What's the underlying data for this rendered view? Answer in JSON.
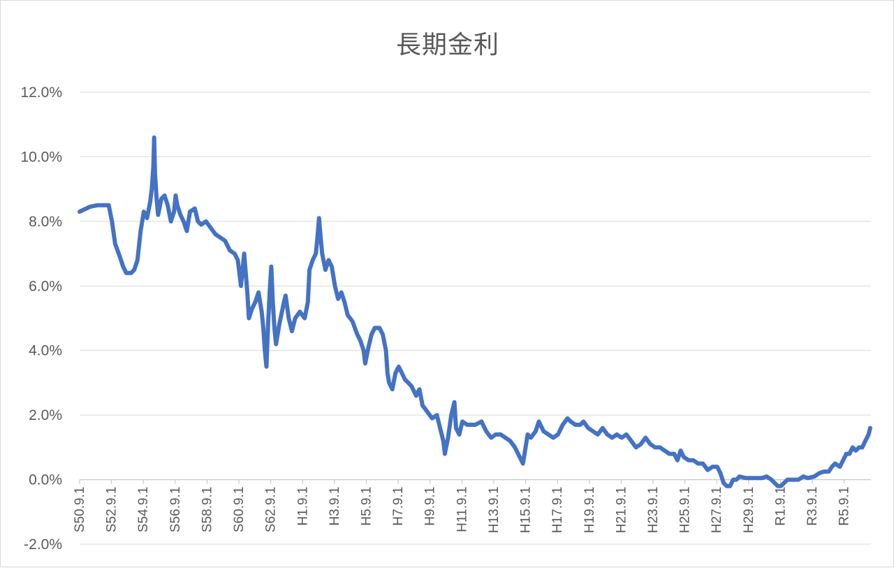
{
  "chart_data": {
    "type": "line",
    "title": "長期金利",
    "xlabel": "",
    "ylabel": "",
    "ylim": [
      -0.02,
      0.12
    ],
    "y_ticks": [
      -0.02,
      0.0,
      0.02,
      0.04,
      0.06,
      0.08,
      0.1,
      0.12
    ],
    "y_tick_labels": [
      "-2.0%",
      "0.0%",
      "2.0%",
      "4.0%",
      "6.0%",
      "8.0%",
      "10.0%",
      "12.0%"
    ],
    "grid": true,
    "legend": "none",
    "line_color": "#4472c4",
    "x_tick_labels": [
      "S50.9.1",
      "S52.9.1",
      "S54.9.1",
      "S56.9.1",
      "S58.9.1",
      "S60.9.1",
      "S62.9.1",
      "H1.9.1",
      "H3.9.1",
      "H5.9.1",
      "H7.9.1",
      "H9.9.1",
      "H11.9.1",
      "H13.9.1",
      "H15.9.1",
      "H17.9.1",
      "H19.9.1",
      "H21.9.1",
      "H23.9.1",
      "H25.9.1",
      "H27.9.1",
      "H29.9.1",
      "R1.9.1",
      "R3.9.1",
      "R5.9.1"
    ],
    "series": [
      {
        "values": [
          [
            1975.67,
            0.083
          ],
          [
            1976.3,
            0.0845
          ],
          [
            1976.8,
            0.085
          ],
          [
            1977.3,
            0.085
          ],
          [
            1977.5,
            0.085
          ],
          [
            1977.7,
            0.08
          ],
          [
            1977.9,
            0.073
          ],
          [
            1978.2,
            0.069
          ],
          [
            1978.4,
            0.066
          ],
          [
            1978.6,
            0.064
          ],
          [
            1978.9,
            0.064
          ],
          [
            1979.1,
            0.065
          ],
          [
            1979.3,
            0.068
          ],
          [
            1979.5,
            0.077
          ],
          [
            1979.7,
            0.083
          ],
          [
            1979.9,
            0.081
          ],
          [
            1980.1,
            0.086
          ],
          [
            1980.2,
            0.09
          ],
          [
            1980.3,
            0.097
          ],
          [
            1980.35,
            0.106
          ],
          [
            1980.4,
            0.095
          ],
          [
            1980.5,
            0.087
          ],
          [
            1980.6,
            0.082
          ],
          [
            1980.8,
            0.087
          ],
          [
            1981.0,
            0.088
          ],
          [
            1981.2,
            0.085
          ],
          [
            1981.4,
            0.08
          ],
          [
            1981.6,
            0.083
          ],
          [
            1981.7,
            0.088
          ],
          [
            1981.8,
            0.085
          ],
          [
            1982.0,
            0.082
          ],
          [
            1982.2,
            0.08
          ],
          [
            1982.4,
            0.077
          ],
          [
            1982.6,
            0.083
          ],
          [
            1982.9,
            0.084
          ],
          [
            1983.1,
            0.08
          ],
          [
            1983.3,
            0.079
          ],
          [
            1983.6,
            0.08
          ],
          [
            1983.9,
            0.078
          ],
          [
            1984.2,
            0.076
          ],
          [
            1984.5,
            0.075
          ],
          [
            1984.8,
            0.074
          ],
          [
            1985.1,
            0.071
          ],
          [
            1985.4,
            0.07
          ],
          [
            1985.6,
            0.068
          ],
          [
            1985.8,
            0.06
          ],
          [
            1986.0,
            0.07
          ],
          [
            1986.2,
            0.058
          ],
          [
            1986.3,
            0.05
          ],
          [
            1986.5,
            0.053
          ],
          [
            1986.7,
            0.055
          ],
          [
            1986.9,
            0.058
          ],
          [
            1987.1,
            0.052
          ],
          [
            1987.2,
            0.047
          ],
          [
            1987.3,
            0.04
          ],
          [
            1987.4,
            0.035
          ],
          [
            1987.5,
            0.048
          ],
          [
            1987.6,
            0.058
          ],
          [
            1987.7,
            0.066
          ],
          [
            1987.8,
            0.055
          ],
          [
            1987.9,
            0.047
          ],
          [
            1988.0,
            0.042
          ],
          [
            1988.2,
            0.048
          ],
          [
            1988.5,
            0.055
          ],
          [
            1988.6,
            0.057
          ],
          [
            1988.8,
            0.05
          ],
          [
            1989.0,
            0.046
          ],
          [
            1989.2,
            0.05
          ],
          [
            1989.5,
            0.052
          ],
          [
            1989.8,
            0.05
          ],
          [
            1990.0,
            0.055
          ],
          [
            1990.1,
            0.065
          ],
          [
            1990.3,
            0.068
          ],
          [
            1990.5,
            0.07
          ],
          [
            1990.6,
            0.075
          ],
          [
            1990.7,
            0.081
          ],
          [
            1990.8,
            0.075
          ],
          [
            1990.9,
            0.07
          ],
          [
            1991.1,
            0.065
          ],
          [
            1991.3,
            0.068
          ],
          [
            1991.5,
            0.066
          ],
          [
            1991.7,
            0.06
          ],
          [
            1991.9,
            0.056
          ],
          [
            1992.1,
            0.058
          ],
          [
            1992.3,
            0.055
          ],
          [
            1992.5,
            0.051
          ],
          [
            1992.8,
            0.049
          ],
          [
            1993.1,
            0.045
          ],
          [
            1993.3,
            0.043
          ],
          [
            1993.5,
            0.04
          ],
          [
            1993.6,
            0.036
          ],
          [
            1993.8,
            0.041
          ],
          [
            1994.0,
            0.045
          ],
          [
            1994.2,
            0.047
          ],
          [
            1994.5,
            0.047
          ],
          [
            1994.7,
            0.045
          ],
          [
            1994.9,
            0.04
          ],
          [
            1995.0,
            0.033
          ],
          [
            1995.1,
            0.03
          ],
          [
            1995.3,
            0.028
          ],
          [
            1995.5,
            0.033
          ],
          [
            1995.7,
            0.035
          ],
          [
            1995.9,
            0.033
          ],
          [
            1996.1,
            0.031
          ],
          [
            1996.3,
            0.03
          ],
          [
            1996.5,
            0.029
          ],
          [
            1996.8,
            0.026
          ],
          [
            1997.0,
            0.028
          ],
          [
            1997.2,
            0.023
          ],
          [
            1997.5,
            0.021
          ],
          [
            1997.8,
            0.019
          ],
          [
            1998.1,
            0.02
          ],
          [
            1998.3,
            0.016
          ],
          [
            1998.5,
            0.012
          ],
          [
            1998.6,
            0.008
          ],
          [
            1998.8,
            0.013
          ],
          [
            1999.0,
            0.02
          ],
          [
            1999.2,
            0.024
          ],
          [
            1999.3,
            0.016
          ],
          [
            1999.5,
            0.014
          ],
          [
            1999.7,
            0.018
          ],
          [
            2000.0,
            0.017
          ],
          [
            2000.5,
            0.017
          ],
          [
            2000.9,
            0.018
          ],
          [
            2001.2,
            0.015
          ],
          [
            2001.5,
            0.013
          ],
          [
            2001.8,
            0.014
          ],
          [
            2002.1,
            0.014
          ],
          [
            2002.4,
            0.013
          ],
          [
            2002.7,
            0.012
          ],
          [
            2003.0,
            0.01
          ],
          [
            2003.2,
            0.008
          ],
          [
            2003.4,
            0.006
          ],
          [
            2003.5,
            0.005
          ],
          [
            2003.6,
            0.008
          ],
          [
            2003.8,
            0.014
          ],
          [
            2004.0,
            0.013
          ],
          [
            2004.3,
            0.015
          ],
          [
            2004.5,
            0.018
          ],
          [
            2004.8,
            0.015
          ],
          [
            2005.1,
            0.014
          ],
          [
            2005.4,
            0.013
          ],
          [
            2005.7,
            0.014
          ],
          [
            2006.0,
            0.017
          ],
          [
            2006.3,
            0.019
          ],
          [
            2006.5,
            0.018
          ],
          [
            2006.8,
            0.017
          ],
          [
            2007.1,
            0.017
          ],
          [
            2007.3,
            0.018
          ],
          [
            2007.6,
            0.016
          ],
          [
            2007.9,
            0.015
          ],
          [
            2008.2,
            0.014
          ],
          [
            2008.5,
            0.016
          ],
          [
            2008.8,
            0.014
          ],
          [
            2009.1,
            0.013
          ],
          [
            2009.4,
            0.014
          ],
          [
            2009.7,
            0.013
          ],
          [
            2010.0,
            0.014
          ],
          [
            2010.3,
            0.012
          ],
          [
            2010.6,
            0.01
          ],
          [
            2010.9,
            0.011
          ],
          [
            2011.2,
            0.013
          ],
          [
            2011.5,
            0.011
          ],
          [
            2011.8,
            0.01
          ],
          [
            2012.1,
            0.01
          ],
          [
            2012.4,
            0.009
          ],
          [
            2012.7,
            0.008
          ],
          [
            2013.0,
            0.008
          ],
          [
            2013.2,
            0.006
          ],
          [
            2013.4,
            0.009
          ],
          [
            2013.6,
            0.007
          ],
          [
            2013.9,
            0.006
          ],
          [
            2014.2,
            0.006
          ],
          [
            2014.5,
            0.005
          ],
          [
            2014.8,
            0.005
          ],
          [
            2015.1,
            0.003
          ],
          [
            2015.4,
            0.004
          ],
          [
            2015.7,
            0.004
          ],
          [
            2015.9,
            0.002
          ],
          [
            2016.1,
            -0.001
          ],
          [
            2016.3,
            -0.002
          ],
          [
            2016.5,
            -0.002
          ],
          [
            2016.7,
            0.0
          ],
          [
            2016.9,
            0.0
          ],
          [
            2017.1,
            0.001
          ],
          [
            2017.5,
            0.0005
          ],
          [
            2017.9,
            0.0005
          ],
          [
            2018.2,
            0.0005
          ],
          [
            2018.5,
            0.0005
          ],
          [
            2018.8,
            0.001
          ],
          [
            2019.1,
            0.0
          ],
          [
            2019.3,
            -0.001
          ],
          [
            2019.5,
            -0.002
          ],
          [
            2019.7,
            -0.002
          ],
          [
            2019.9,
            -0.001
          ],
          [
            2020.1,
            0.0
          ],
          [
            2020.4,
            0.0
          ],
          [
            2020.8,
            0.0
          ],
          [
            2021.1,
            0.001
          ],
          [
            2021.4,
            0.0005
          ],
          [
            2021.8,
            0.001
          ],
          [
            2022.1,
            0.002
          ],
          [
            2022.4,
            0.0025
          ],
          [
            2022.7,
            0.0025
          ],
          [
            2022.9,
            0.004
          ],
          [
            2023.1,
            0.005
          ],
          [
            2023.4,
            0.004
          ],
          [
            2023.6,
            0.006
          ],
          [
            2023.8,
            0.008
          ],
          [
            2024.0,
            0.008
          ],
          [
            2024.2,
            0.01
          ],
          [
            2024.4,
            0.009
          ],
          [
            2024.6,
            0.01
          ],
          [
            2024.8,
            0.01
          ],
          [
            2025.0,
            0.012
          ],
          [
            2025.2,
            0.014
          ],
          [
            2025.3,
            0.016
          ]
        ]
      }
    ]
  }
}
